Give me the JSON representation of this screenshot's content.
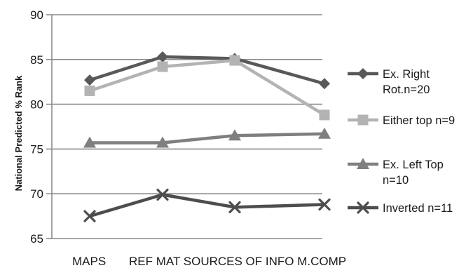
{
  "chart_data": {
    "type": "line",
    "categories": [
      "MAPS",
      "REF MAT",
      "SOURCES OF INFO",
      "M.COMP"
    ],
    "category_labels": [
      "MAPS",
      "REF MAT SOURCES OF INFO M.COMP"
    ],
    "ylabel": "National Predicted % Rank",
    "ylim": [
      65,
      90
    ],
    "yticks": [
      65,
      70,
      75,
      80,
      85,
      90
    ],
    "grid": "horizontal",
    "legend_position": "right",
    "series": [
      {
        "name": "Ex. Right Rot.n=20",
        "legend_lines": [
          "Ex. Right",
          "Rot.n=20"
        ],
        "values": [
          82.7,
          85.3,
          85.1,
          82.3
        ],
        "marker": "diamond",
        "color": "#595959"
      },
      {
        "name": "Either top n=9",
        "legend_lines": [
          "Either top  n=9"
        ],
        "values": [
          81.5,
          84.2,
          84.9,
          78.8
        ],
        "marker": "square",
        "color": "#b3b3b3"
      },
      {
        "name": "Ex. Left Top n=10",
        "legend_lines": [
          "Ex. Left Top",
          "n=10"
        ],
        "values": [
          75.7,
          75.7,
          76.5,
          76.7
        ],
        "marker": "triangle",
        "color": "#7f7f7f"
      },
      {
        "name": "Inverted n=11",
        "legend_lines": [
          "Inverted n=11"
        ],
        "values": [
          67.5,
          69.9,
          68.5,
          68.8
        ],
        "marker": "x",
        "color": "#4d4d4d"
      }
    ]
  }
}
